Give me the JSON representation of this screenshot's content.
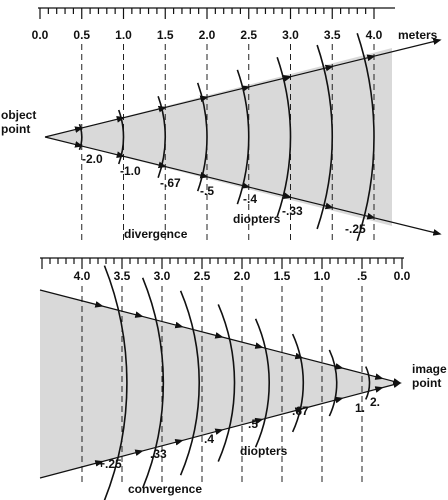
{
  "top": {
    "scale_labels": [
      "0.0",
      "0.5",
      "1.0",
      "1.5",
      "2.0",
      "2.5",
      "3.0",
      "3.5",
      "4.0"
    ],
    "unit": "meters",
    "point_label": [
      "object",
      "point"
    ],
    "vergence_labels": [
      "-2.0",
      "-1.0",
      "-.67",
      "-.5",
      "-.4",
      "-.33",
      "-.25"
    ],
    "caption": "divergence",
    "vergence_unit": "diopters"
  },
  "bottom": {
    "scale_labels": [
      "4.0",
      "3.5",
      "3.0",
      "2.5",
      "2.0",
      "1.5",
      "1.0",
      ".5",
      "0.0"
    ],
    "point_label": [
      "image",
      "point"
    ],
    "vergence_labels": [
      "+.25",
      ".33",
      ".4",
      ".5",
      ".67",
      "1.",
      "2."
    ],
    "caption": "convergence",
    "vergence_unit": "diopters"
  }
}
